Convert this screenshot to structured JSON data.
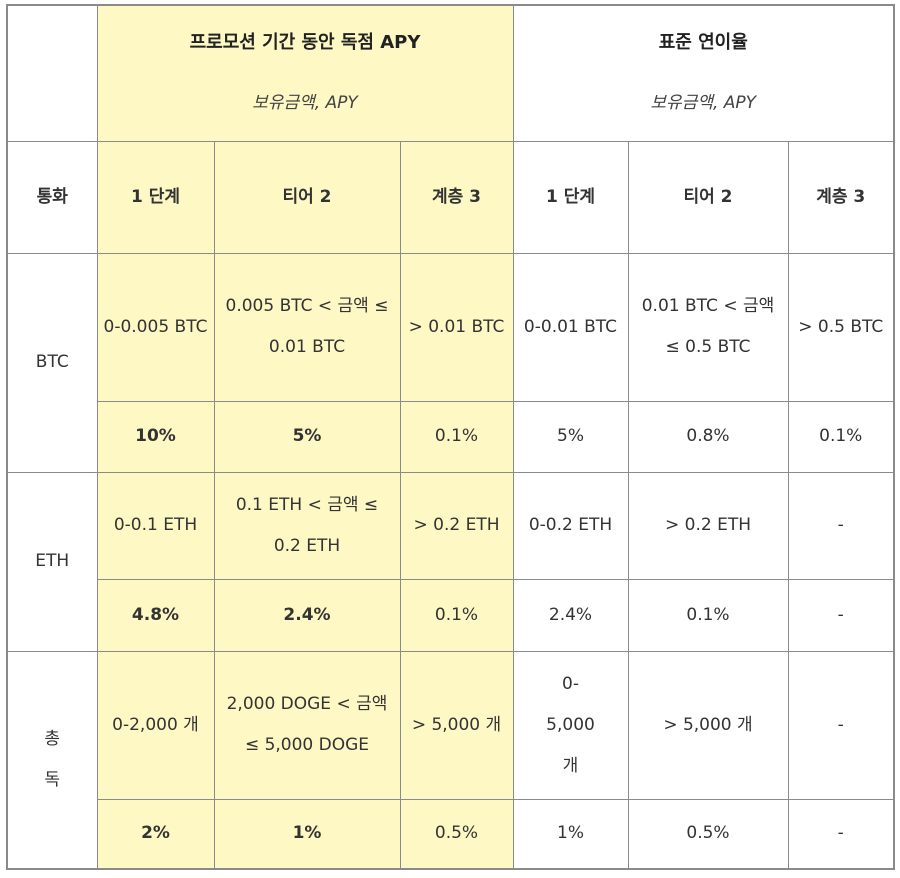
{
  "header": {
    "promo_title": "프로모션 기간 동안 독점 APY",
    "promo_subtitle": "보유금액, APY",
    "standard_title": "표준 연이율",
    "standard_subtitle": "보유금액, APY",
    "currency_label": "통화"
  },
  "tiers": {
    "promo": [
      "1 단계",
      "티어 2",
      "계층 3"
    ],
    "standard": [
      "1 단계",
      "티어 2",
      "계층 3"
    ]
  },
  "rows": [
    {
      "coin": "BTC",
      "promo_ranges": [
        "0-0.005 BTC",
        "0.005 BTC < 금액 ≤ 0.01 BTC",
        "> 0.01 BTC"
      ],
      "standard_ranges": [
        "0-0.01 BTC",
        "0.01 BTC < 금액 ≤ 0.5 BTC",
        "> 0.5 BTC"
      ],
      "promo_rates": [
        "10%",
        "5%",
        "0.1%"
      ],
      "standard_rates": [
        "5%",
        "0.8%",
        "0.1%"
      ]
    },
    {
      "coin": "ETH",
      "promo_ranges": [
        "0-0.1 ETH",
        "0.1 ETH < 금액 ≤ 0.2 ETH",
        "> 0.2 ETH"
      ],
      "standard_ranges": [
        "0-0.2 ETH",
        "> 0.2 ETH",
        "-"
      ],
      "promo_rates": [
        "4.8%",
        "2.4%",
        "0.1%"
      ],
      "standard_rates": [
        "2.4%",
        "0.1%",
        "-"
      ]
    },
    {
      "coin": "총독",
      "promo_ranges": [
        "0-2,000 개",
        "2,000 DOGE < 금액 ≤ 5,000 DOGE",
        "> 5,000 개"
      ],
      "standard_ranges": [
        "0-5,000 개",
        "> 5,000 개",
        "-"
      ],
      "promo_rates": [
        "2%",
        "1%",
        "0.5%"
      ],
      "standard_rates": [
        "1%",
        "0.5%",
        "-"
      ]
    }
  ],
  "colors": {
    "promo_background": "#fdf8c4",
    "border": "#8a8a8a",
    "text": "#333333"
  }
}
